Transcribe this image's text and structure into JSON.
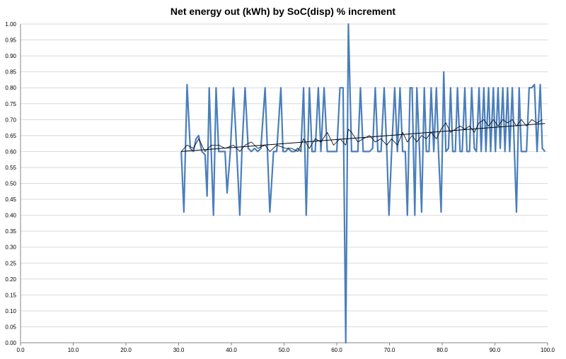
{
  "chart_data": {
    "type": "line",
    "title": "Net energy out (kWh) by SoC(disp) % increment",
    "xlabel": "",
    "ylabel": "",
    "xlim": [
      0,
      100
    ],
    "ylim": [
      0,
      1
    ],
    "x_ticks": [
      "0.0",
      "10.0",
      "20.0",
      "30.0",
      "40.0",
      "50.0",
      "60.0",
      "70.0",
      "80.0",
      "90.0",
      "100.0"
    ],
    "y_ticks": [
      "0.00",
      "0.05",
      "0.10",
      "0.15",
      "0.20",
      "0.25",
      "0.30",
      "0.35",
      "0.40",
      "0.45",
      "0.50",
      "0.55",
      "0.60",
      "0.65",
      "0.70",
      "0.75",
      "0.80",
      "0.85",
      "0.90",
      "0.95",
      "1.00"
    ],
    "grid": "horizontal",
    "colors": {
      "series": "#4a7ebb",
      "moving_average": "#000000",
      "trend": "#000000",
      "grid": "#d9d9d9",
      "axis": "#868686"
    },
    "series": [
      {
        "style": "thick-line",
        "points": [
          [
            30.5,
            0.6
          ],
          [
            31.0,
            0.41
          ],
          [
            31.6,
            0.81
          ],
          [
            32.2,
            0.61
          ],
          [
            32.8,
            0.6
          ],
          [
            33.3,
            0.64
          ],
          [
            33.8,
            0.65
          ],
          [
            34.4,
            0.6
          ],
          [
            35.0,
            0.59
          ],
          [
            35.4,
            0.46
          ],
          [
            35.8,
            0.8
          ],
          [
            36.2,
            0.59
          ],
          [
            36.6,
            0.4
          ],
          [
            37.1,
            0.8
          ],
          [
            37.6,
            0.6
          ],
          [
            38.2,
            0.6
          ],
          [
            38.8,
            0.6
          ],
          [
            39.2,
            0.47
          ],
          [
            39.8,
            0.6
          ],
          [
            40.4,
            0.8
          ],
          [
            41.0,
            0.61
          ],
          [
            41.6,
            0.4
          ],
          [
            42.0,
            0.6
          ],
          [
            42.6,
            0.8
          ],
          [
            43.2,
            0.61
          ],
          [
            43.8,
            0.6
          ],
          [
            44.4,
            0.61
          ],
          [
            45.0,
            0.6
          ],
          [
            45.6,
            0.61
          ],
          [
            46.4,
            0.8
          ],
          [
            46.8,
            0.62
          ],
          [
            47.3,
            0.41
          ],
          [
            48.0,
            0.6
          ],
          [
            48.6,
            0.6
          ],
          [
            49.4,
            0.8
          ],
          [
            49.8,
            0.6
          ],
          [
            50.3,
            0.6
          ],
          [
            50.8,
            0.61
          ],
          [
            51.4,
            0.6
          ],
          [
            52.0,
            0.6
          ],
          [
            52.6,
            0.61
          ],
          [
            53.2,
            0.6
          ],
          [
            53.7,
            0.8
          ],
          [
            54.2,
            0.4
          ],
          [
            54.8,
            0.8
          ],
          [
            55.3,
            0.6
          ],
          [
            55.9,
            0.6
          ],
          [
            56.5,
            0.8
          ],
          [
            57.0,
            0.6
          ],
          [
            57.6,
            0.8
          ],
          [
            58.2,
            0.6
          ],
          [
            58.8,
            0.6
          ],
          [
            59.4,
            0.6
          ],
          [
            60.0,
            0.6
          ],
          [
            60.6,
            0.8
          ],
          [
            61.2,
            0.8
          ],
          [
            61.7,
            0.0
          ],
          [
            62.2,
            1.0
          ],
          [
            62.8,
            0.6
          ],
          [
            63.4,
            0.6
          ],
          [
            64.0,
            0.6
          ],
          [
            64.5,
            0.8
          ],
          [
            65.0,
            0.6
          ],
          [
            65.6,
            0.6
          ],
          [
            66.2,
            0.6
          ],
          [
            66.8,
            0.61
          ],
          [
            67.3,
            0.8
          ],
          [
            67.8,
            0.6
          ],
          [
            68.4,
            0.6
          ],
          [
            69.0,
            0.8
          ],
          [
            69.5,
            0.6
          ],
          [
            69.9,
            0.4
          ],
          [
            70.4,
            0.6
          ],
          [
            71.0,
            0.8
          ],
          [
            71.5,
            0.6
          ],
          [
            72.0,
            0.8
          ],
          [
            72.5,
            0.6
          ],
          [
            73.0,
            0.6
          ],
          [
            73.4,
            0.4
          ],
          [
            73.9,
            0.8
          ],
          [
            74.3,
            0.8
          ],
          [
            74.8,
            0.4
          ],
          [
            75.2,
            0.8
          ],
          [
            75.7,
            0.6
          ],
          [
            76.1,
            0.41
          ],
          [
            76.6,
            0.8
          ],
          [
            77.0,
            0.6
          ],
          [
            77.5,
            0.6
          ],
          [
            77.9,
            0.8
          ],
          [
            78.4,
            0.6
          ],
          [
            78.9,
            0.8
          ],
          [
            79.3,
            0.6
          ],
          [
            79.8,
            0.41
          ],
          [
            80.3,
            0.85
          ],
          [
            80.7,
            0.6
          ],
          [
            81.2,
            0.61
          ],
          [
            81.6,
            0.8
          ],
          [
            82.0,
            0.6
          ],
          [
            82.5,
            0.6
          ],
          [
            82.9,
            0.8
          ],
          [
            83.4,
            0.6
          ],
          [
            83.8,
            0.6
          ],
          [
            84.3,
            0.8
          ],
          [
            84.7,
            0.6
          ],
          [
            85.2,
            0.6
          ],
          [
            85.6,
            0.8
          ],
          [
            86.1,
            0.61
          ],
          [
            86.5,
            0.6
          ],
          [
            87.0,
            0.8
          ],
          [
            87.4,
            0.6
          ],
          [
            87.9,
            0.8
          ],
          [
            88.3,
            0.6
          ],
          [
            88.8,
            0.8
          ],
          [
            89.2,
            0.6
          ],
          [
            89.7,
            0.8
          ],
          [
            90.1,
            0.6
          ],
          [
            90.6,
            0.8
          ],
          [
            91.0,
            0.61
          ],
          [
            91.5,
            0.8
          ],
          [
            91.9,
            0.6
          ],
          [
            92.4,
            0.8
          ],
          [
            92.8,
            0.6
          ],
          [
            93.3,
            0.8
          ],
          [
            93.7,
            0.6
          ],
          [
            94.1,
            0.41
          ],
          [
            94.6,
            0.8
          ],
          [
            95.0,
            0.6
          ],
          [
            95.5,
            0.6
          ],
          [
            96.0,
            0.6
          ],
          [
            96.5,
            0.8
          ],
          [
            97.0,
            0.8
          ],
          [
            97.5,
            0.81
          ],
          [
            98.0,
            0.6
          ],
          [
            98.6,
            0.81
          ],
          [
            99.0,
            0.61
          ],
          [
            99.5,
            0.6
          ]
        ]
      },
      {
        "style": "moving-average",
        "points": [
          [
            30.5,
            0.6
          ],
          [
            31.6,
            0.62
          ],
          [
            32.8,
            0.61
          ],
          [
            33.8,
            0.64
          ],
          [
            35.0,
            0.6
          ],
          [
            36.2,
            0.62
          ],
          [
            37.6,
            0.62
          ],
          [
            38.8,
            0.61
          ],
          [
            40.4,
            0.62
          ],
          [
            41.6,
            0.6
          ],
          [
            42.6,
            0.62
          ],
          [
            43.8,
            0.63
          ],
          [
            45.0,
            0.61
          ],
          [
            46.4,
            0.62
          ],
          [
            47.3,
            0.6
          ],
          [
            48.6,
            0.62
          ],
          [
            50.3,
            0.61
          ],
          [
            51.4,
            0.61
          ],
          [
            52.6,
            0.6
          ],
          [
            53.7,
            0.64
          ],
          [
            54.8,
            0.61
          ],
          [
            55.9,
            0.64
          ],
          [
            57.0,
            0.63
          ],
          [
            58.2,
            0.66
          ],
          [
            59.4,
            0.62
          ],
          [
            60.6,
            0.64
          ],
          [
            61.7,
            0.62
          ],
          [
            62.2,
            0.67
          ],
          [
            62.8,
            0.66
          ],
          [
            64.0,
            0.63
          ],
          [
            65.0,
            0.64
          ],
          [
            66.2,
            0.65
          ],
          [
            67.3,
            0.63
          ],
          [
            68.4,
            0.64
          ],
          [
            69.5,
            0.62
          ],
          [
            70.4,
            0.64
          ],
          [
            71.5,
            0.62
          ],
          [
            72.5,
            0.66
          ],
          [
            73.4,
            0.63
          ],
          [
            74.3,
            0.65
          ],
          [
            75.2,
            0.63
          ],
          [
            76.1,
            0.65
          ],
          [
            77.0,
            0.64
          ],
          [
            77.9,
            0.66
          ],
          [
            78.9,
            0.64
          ],
          [
            79.8,
            0.67
          ],
          [
            80.7,
            0.69
          ],
          [
            81.6,
            0.66
          ],
          [
            82.5,
            0.67
          ],
          [
            83.4,
            0.68
          ],
          [
            84.3,
            0.67
          ],
          [
            85.2,
            0.68
          ],
          [
            86.1,
            0.66
          ],
          [
            87.0,
            0.69
          ],
          [
            87.9,
            0.7
          ],
          [
            88.8,
            0.68
          ],
          [
            89.7,
            0.7
          ],
          [
            90.6,
            0.68
          ],
          [
            91.5,
            0.7
          ],
          [
            92.4,
            0.69
          ],
          [
            93.3,
            0.7
          ],
          [
            94.1,
            0.68
          ],
          [
            95.0,
            0.7
          ],
          [
            96.0,
            0.68
          ],
          [
            97.0,
            0.7
          ],
          [
            98.0,
            0.69
          ],
          [
            99.0,
            0.7
          ]
        ]
      },
      {
        "style": "linear-trend",
        "points": [
          [
            30.5,
            0.6
          ],
          [
            99.5,
            0.688
          ]
        ]
      }
    ]
  }
}
